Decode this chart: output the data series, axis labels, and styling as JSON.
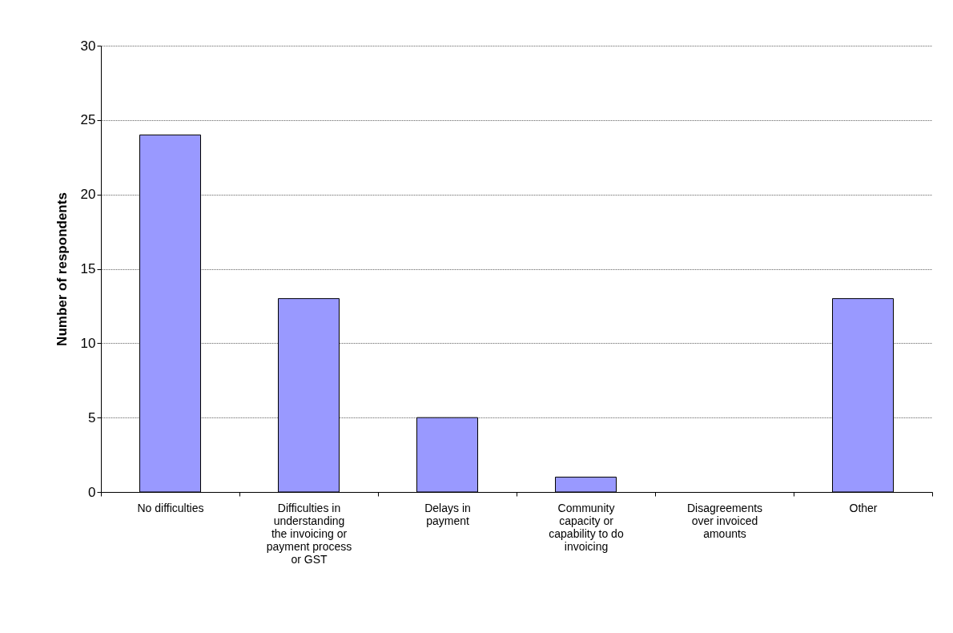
{
  "chart_data": {
    "type": "bar",
    "categories": [
      "No difficulties",
      "Difficulties in understanding the invoicing or payment process or GST",
      "Delays in payment",
      "Community capacity or capability to do invoicing",
      "Disagreements over invoiced amounts",
      "Other"
    ],
    "values": [
      24,
      13,
      5,
      1,
      0,
      13
    ],
    "color": "#9999ff",
    "ylabel": "Number of respondents",
    "ylim": [
      0,
      30
    ],
    "yticks": [
      0,
      5,
      10,
      15,
      20,
      25,
      30
    ],
    "grid": "y"
  }
}
